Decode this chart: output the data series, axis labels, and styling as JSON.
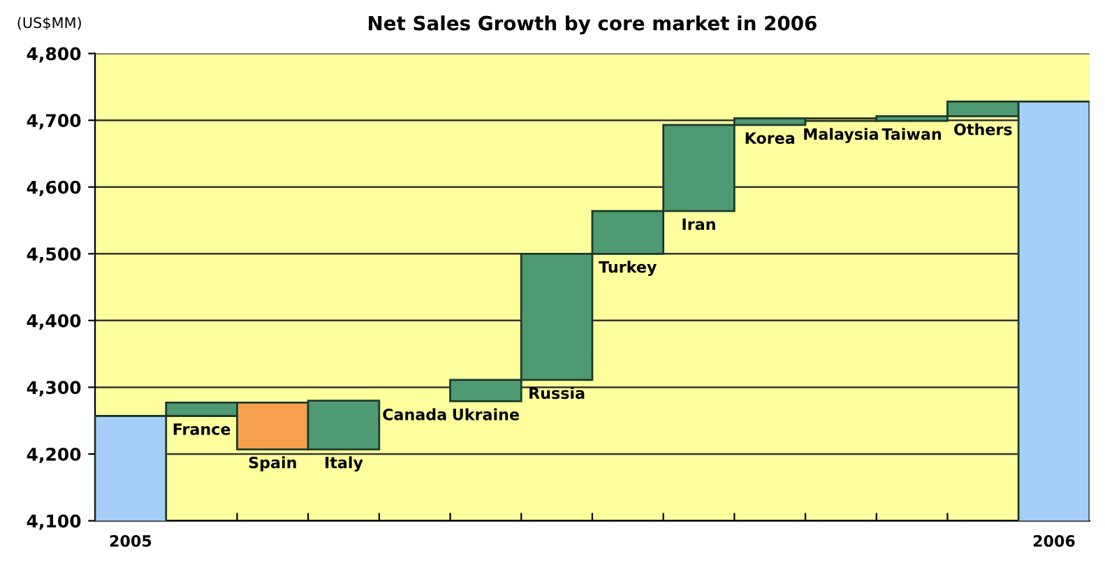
{
  "chart_data": {
    "type": "bar",
    "title": "Net Sales Growth by core market in 2006",
    "ylabel": "(US$MM)",
    "categories": [
      "2005",
      "France",
      "Spain",
      "Italy",
      "Canada",
      "Ukraine",
      "Russia",
      "Turkey",
      "Iran",
      "Korea",
      "Malaysia",
      "Taiwan",
      "Others",
      "2006"
    ],
    "values": [
      4257,
      20,
      -70,
      73,
      null,
      32,
      189,
      64,
      129,
      10,
      -4,
      7,
      22,
      4728
    ],
    "base": [
      null,
      4257,
      4277,
      4207,
      null,
      4279,
      4311,
      4500,
      4564,
      4693,
      4703,
      4699,
      4706,
      null
    ],
    "colors": [
      "#a6cff7",
      "#4e9a72",
      "#f7a04c",
      "#4e9a72",
      "#f7a04c",
      "#4e9a72",
      "#4e9a72",
      "#4e9a72",
      "#4e9a72",
      "#4e9a72",
      "#f7a04c",
      "#4e9a72",
      "#4e9a72",
      "#a6cff7"
    ],
    "ylim": [
      4100,
      4800
    ],
    "yticks": [
      {
        "value": 4100,
        "label": "4,100"
      },
      {
        "value": 4200,
        "label": "4,200"
      },
      {
        "value": 4300,
        "label": "4,300"
      },
      {
        "value": 4400,
        "label": "4,400"
      },
      {
        "value": 4500,
        "label": "4,500"
      },
      {
        "value": 4600,
        "label": "4,600"
      },
      {
        "value": 4700,
        "label": "4,700"
      },
      {
        "value": 4800,
        "label": "4,800"
      }
    ],
    "grid": "y",
    "legend": false
  }
}
